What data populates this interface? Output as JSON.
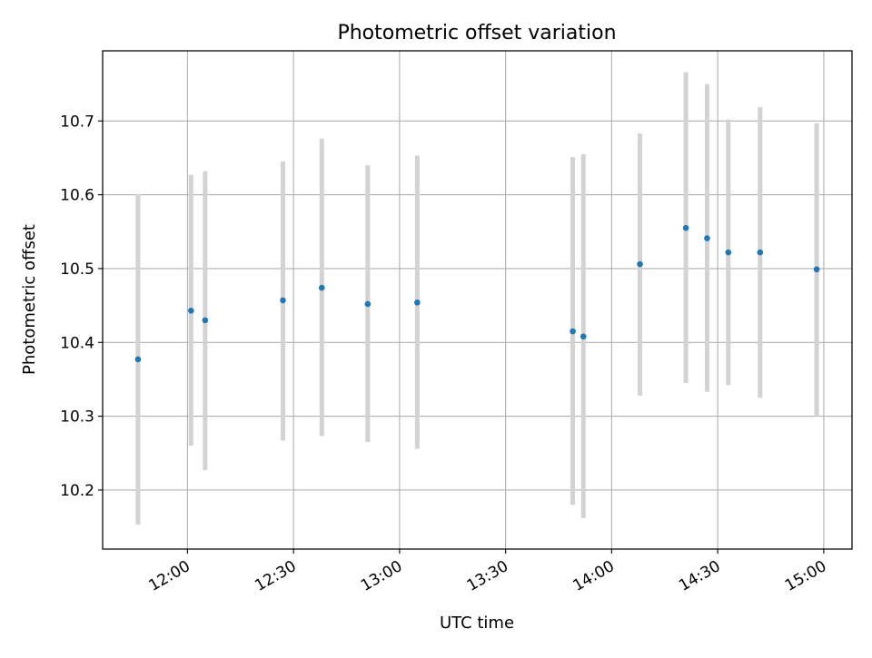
{
  "chart_data": {
    "type": "scatter",
    "title": "Photometric offset variation",
    "xlabel": "UTC time",
    "ylabel": "Photometric offset",
    "x_tick_labels": [
      "12:00",
      "12:30",
      "13:00",
      "13:30",
      "14:00",
      "14:30",
      "15:00"
    ],
    "x_ticks": [
      "12:00",
      "12:30",
      "13:00",
      "13:30",
      "14:00",
      "14:30",
      "15:00"
    ],
    "y_ticks": [
      10.2,
      10.3,
      10.4,
      10.5,
      10.6,
      10.7
    ],
    "y_tick_labels": [
      "10.2",
      "10.3",
      "10.4",
      "10.5",
      "10.6",
      "10.7"
    ],
    "xlim": [
      "11:36",
      "15:08"
    ],
    "ylim": [
      10.12,
      10.795
    ],
    "grid": true,
    "legend": "none",
    "series": [
      {
        "x": [
          "11:46",
          "12:01",
          "12:05",
          "12:27",
          "12:38",
          "12:51",
          "13:05",
          "13:49",
          "13:52",
          "14:08",
          "14:21",
          "14:27",
          "14:33",
          "14:42",
          "14:58"
        ],
        "y": [
          10.377,
          10.443,
          10.43,
          10.457,
          10.474,
          10.452,
          10.454,
          10.415,
          10.408,
          10.506,
          10.555,
          10.541,
          10.522,
          10.522,
          10.499
        ],
        "yerr_low": [
          10.153,
          10.26,
          10.227,
          10.267,
          10.273,
          10.265,
          10.256,
          10.18,
          10.162,
          10.328,
          10.345,
          10.333,
          10.342,
          10.325,
          10.3
        ],
        "yerr_high": [
          10.601,
          10.627,
          10.632,
          10.645,
          10.676,
          10.64,
          10.653,
          10.651,
          10.655,
          10.683,
          10.766,
          10.75,
          10.702,
          10.719,
          10.697
        ]
      }
    ],
    "colors": {
      "point": "#1f77b4",
      "errorbar": "#d3d3d3",
      "grid": "#b0b0b0",
      "axes": "#000000"
    }
  }
}
